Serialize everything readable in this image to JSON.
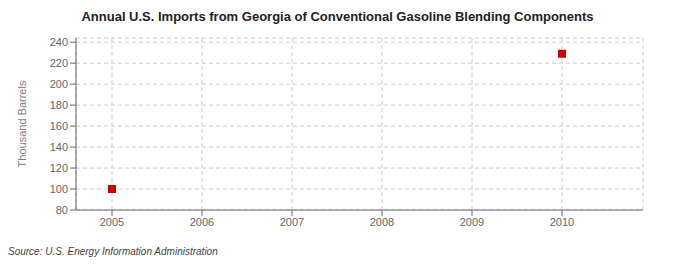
{
  "chart_data": {
    "type": "scatter",
    "title": "Annual U.S. Imports from Georgia of Conventional Gasoline Blending Components",
    "ylabel": "Thousand Barrels",
    "source": "Source: U.S. Energy Information Administration",
    "x": [
      2005,
      2010
    ],
    "values": [
      100,
      229
    ],
    "color": "#cc0000",
    "marker": "square",
    "xlim": [
      2004.6,
      2010.9
    ],
    "ylim": [
      80,
      244
    ],
    "xticks": [
      2005,
      2006,
      2007,
      2008,
      2009,
      2010
    ],
    "yticks": [
      80,
      100,
      120,
      140,
      160,
      180,
      200,
      220,
      240
    ],
    "grid": true
  }
}
